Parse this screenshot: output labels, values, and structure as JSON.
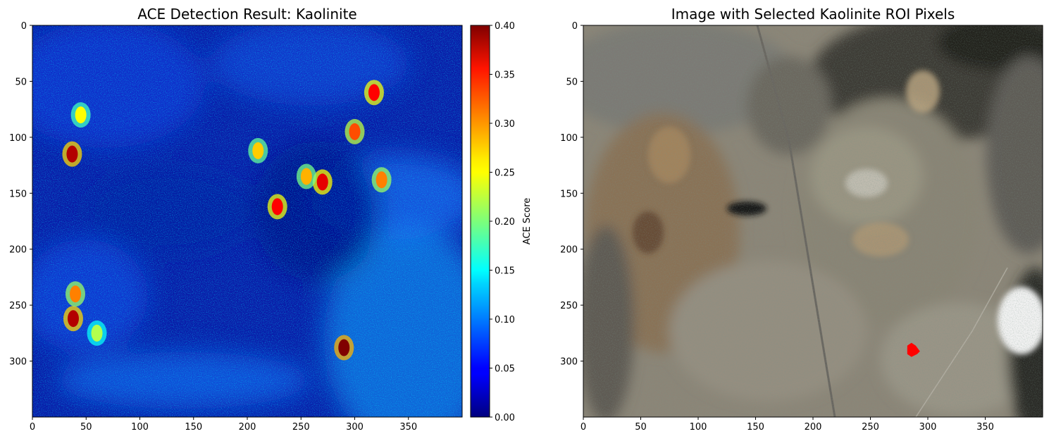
{
  "chart_data": [
    {
      "type": "heatmap",
      "title": "ACE Detection Result: Kaolinite",
      "xlim": [
        0,
        400
      ],
      "ylim": [
        350,
        0
      ],
      "xticks": [
        0,
        50,
        100,
        150,
        200,
        250,
        300,
        350
      ],
      "yticks": [
        0,
        50,
        100,
        150,
        200,
        250,
        300
      ],
      "colormap": "jet",
      "colorbar": {
        "label": "ACE Score",
        "range": [
          0.0,
          0.4
        ],
        "ticks": [
          "0.00",
          "0.05",
          "0.10",
          "0.15",
          "0.20",
          "0.25",
          "0.30",
          "0.35",
          "0.40"
        ]
      },
      "hotspots": [
        {
          "x": 290,
          "y": 288,
          "value": 0.4
        },
        {
          "x": 38,
          "y": 262,
          "value": 0.38
        },
        {
          "x": 37,
          "y": 115,
          "value": 0.38
        },
        {
          "x": 270,
          "y": 140,
          "value": 0.36
        },
        {
          "x": 228,
          "y": 162,
          "value": 0.35
        },
        {
          "x": 318,
          "y": 60,
          "value": 0.35
        },
        {
          "x": 300,
          "y": 95,
          "value": 0.32
        },
        {
          "x": 325,
          "y": 138,
          "value": 0.3
        },
        {
          "x": 40,
          "y": 240,
          "value": 0.3
        },
        {
          "x": 255,
          "y": 135,
          "value": 0.28
        },
        {
          "x": 210,
          "y": 112,
          "value": 0.27
        },
        {
          "x": 45,
          "y": 80,
          "value": 0.25
        },
        {
          "x": 60,
          "y": 275,
          "value": 0.22
        }
      ]
    },
    {
      "type": "image",
      "title": "Image with Selected Kaolinite ROI Pixels",
      "xlim": [
        0,
        400
      ],
      "ylim": [
        350,
        0
      ],
      "xticks": [
        0,
        50,
        100,
        150,
        200,
        250,
        300,
        350
      ],
      "yticks": [
        0,
        50,
        100,
        150,
        200,
        250,
        300
      ],
      "roi": {
        "x": 287,
        "y": 290,
        "color": "#ff0000"
      }
    }
  ]
}
